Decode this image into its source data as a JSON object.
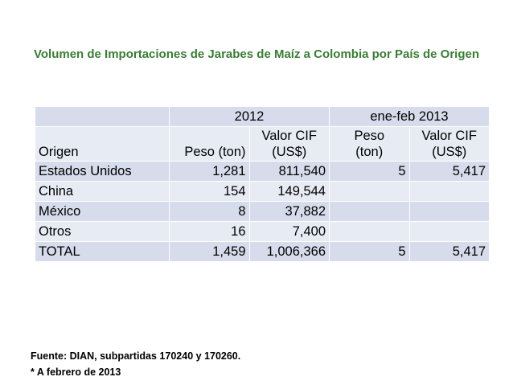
{
  "title": "Volumen de Importaciones de Jarabes de Maíz a Colombia por País de Origen",
  "table": {
    "group_headers": [
      "2012",
      "ene-feb 2013"
    ],
    "column_headers": {
      "origen": "Origen",
      "peso_2012": "Peso (ton)",
      "valor_2012_line1": "Valor CIF",
      "valor_2012_line2": "(US$)",
      "peso_2013_line1": "Peso",
      "peso_2013_line2": "(ton)",
      "valor_2013_line1": "Valor CIF",
      "valor_2013_line2": "(US$)"
    },
    "rows": [
      {
        "origen": "Estados Unidos",
        "peso_2012": "1,281",
        "valor_2012": "811,540",
        "peso_2013": "5",
        "valor_2013": "5,417"
      },
      {
        "origen": "China",
        "peso_2012": "154",
        "valor_2012": "149,544",
        "peso_2013": "",
        "valor_2013": ""
      },
      {
        "origen": "México",
        "peso_2012": "8",
        "valor_2012": "37,882",
        "peso_2013": "",
        "valor_2013": ""
      },
      {
        "origen": "Otros",
        "peso_2012": "16",
        "valor_2012": "7,400",
        "peso_2013": "",
        "valor_2013": ""
      },
      {
        "origen": "TOTAL",
        "peso_2012": "1,459",
        "valor_2012": "1,006,366",
        "peso_2013": "5",
        "valor_2013": "5,417"
      }
    ]
  },
  "footer": {
    "source": "Fuente: DIAN, subpartidas 170240 y 170260.",
    "note": "* A febrero de 2013"
  }
}
